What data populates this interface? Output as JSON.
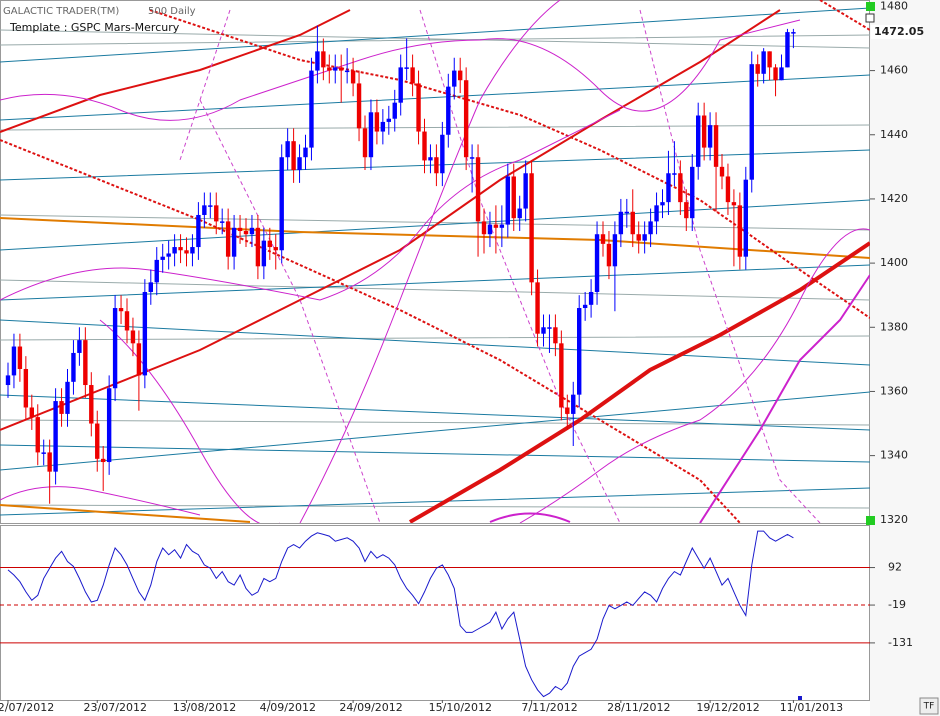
{
  "chart_data": [
    {
      "type": "candlestick",
      "title": "GALACTIC TRADER(TM)",
      "subtitle": "500 Daily",
      "template": "Template : GSPC Mars-Mercury",
      "categories": [
        "2/07/2012",
        null,
        null,
        null,
        null,
        null,
        null,
        null,
        null,
        null,
        null,
        null,
        null,
        null,
        null,
        "23/07/2012",
        null,
        null,
        null,
        null,
        null,
        null,
        null,
        null,
        null,
        null,
        null,
        null,
        null,
        null,
        "13/08/2012",
        null,
        null,
        null,
        null,
        null,
        null,
        null,
        null,
        null,
        null,
        null,
        null,
        null,
        "4/09/2012",
        null,
        null,
        null,
        null,
        null,
        null,
        null,
        null,
        null,
        null,
        null,
        null,
        null,
        "24/09/2012",
        null,
        null,
        null,
        null,
        null,
        null,
        null,
        null,
        null,
        null,
        null,
        null,
        null,
        null,
        "15/10/2012",
        null,
        null,
        null,
        null,
        null,
        null,
        null,
        null,
        null,
        null,
        null,
        null,
        null,
        null,
        "7/11/2012",
        null,
        null,
        null,
        null,
        null,
        null,
        null,
        null,
        null,
        null,
        null,
        null,
        null,
        null,
        "28/11/2012",
        null,
        null,
        null,
        null,
        null,
        null,
        null,
        null,
        null,
        null,
        null,
        null,
        null,
        null,
        "19/12/2012",
        null,
        null,
        null,
        null,
        null,
        null,
        null,
        null,
        null,
        null,
        null,
        null,
        null,
        "11/01/2013"
      ],
      "open": [
        1362,
        1365,
        1374,
        1367,
        1355,
        1352,
        1341,
        1341,
        1335,
        1357,
        1353,
        1363,
        1372,
        1376,
        1362,
        1350,
        1339,
        1338,
        1361,
        1386,
        1385,
        1379,
        1375,
        1365,
        1391,
        1394,
        1401,
        1402,
        1403,
        1405,
        1404,
        1403,
        1405,
        1415,
        1418,
        1418,
        1413,
        1413,
        1402,
        1411,
        1410,
        1409,
        1411,
        1399,
        1407,
        1405,
        1404,
        1433,
        1438,
        1429,
        1433,
        1436,
        1460,
        1466,
        1461,
        1460,
        1461,
        1460,
        1460,
        1456,
        1442,
        1433,
        1447,
        1441,
        1444,
        1445,
        1450,
        1461,
        1461,
        1456,
        1441,
        1432,
        1433,
        1428,
        1440,
        1455,
        1460,
        1457,
        1433,
        1433,
        1413,
        1409,
        1412,
        1411,
        1412,
        1427,
        1414,
        1417,
        1428,
        1394,
        1378,
        1380,
        1380,
        1375,
        1355,
        1353,
        1359,
        1386,
        1387,
        1391,
        1409,
        1406,
        1399,
        1409,
        1416,
        1416,
        1409,
        1407,
        1409,
        1413,
        1418,
        1419,
        1428,
        1428,
        1419,
        1414,
        1430,
        1446,
        1436,
        1443,
        1430,
        1427,
        1419,
        1418,
        1402,
        1426,
        1462,
        1459,
        1466,
        1461,
        1457,
        1461,
        1472
      ],
      "high": [
        1369,
        1378,
        1378,
        1371,
        1359,
        1356,
        1345,
        1345,
        1361,
        1361,
        1367,
        1376,
        1380,
        1380,
        1366,
        1354,
        1343,
        1365,
        1390,
        1390,
        1389,
        1383,
        1379,
        1395,
        1398,
        1405,
        1406,
        1407,
        1409,
        1409,
        1408,
        1409,
        1419,
        1422,
        1422,
        1422,
        1417,
        1417,
        1415,
        1415,
        1414,
        1415,
        1415,
        1411,
        1411,
        1409,
        1437,
        1442,
        1442,
        1437,
        1440,
        1464,
        1474,
        1470,
        1465,
        1465,
        1465,
        1467,
        1464,
        1460,
        1446,
        1451,
        1451,
        1448,
        1449,
        1454,
        1465,
        1470,
        1465,
        1460,
        1445,
        1437,
        1437,
        1444,
        1459,
        1464,
        1464,
        1461,
        1437,
        1437,
        1417,
        1416,
        1418,
        1418,
        1431,
        1431,
        1421,
        1432,
        1432,
        1398,
        1384,
        1384,
        1384,
        1379,
        1359,
        1363,
        1390,
        1391,
        1395,
        1413,
        1413,
        1410,
        1413,
        1420,
        1420,
        1423,
        1413,
        1413,
        1417,
        1422,
        1423,
        1435,
        1438,
        1432,
        1423,
        1434,
        1450,
        1450,
        1447,
        1447,
        1434,
        1431,
        1423,
        1422,
        1430,
        1466,
        1465,
        1467,
        1466,
        1462,
        1465,
        1473,
        1473
      ],
      "low": [
        1358,
        1361,
        1363,
        1351,
        1348,
        1337,
        1337,
        1325,
        1331,
        1349,
        1349,
        1359,
        1368,
        1358,
        1346,
        1335,
        1329,
        1334,
        1357,
        1381,
        1375,
        1371,
        1354,
        1361,
        1387,
        1390,
        1397,
        1398,
        1399,
        1400,
        1399,
        1399,
        1401,
        1411,
        1414,
        1409,
        1409,
        1398,
        1398,
        1406,
        1405,
        1405,
        1395,
        1395,
        1401,
        1398,
        1400,
        1429,
        1425,
        1425,
        1429,
        1432,
        1456,
        1457,
        1456,
        1456,
        1450,
        1456,
        1452,
        1438,
        1429,
        1429,
        1437,
        1437,
        1440,
        1441,
        1446,
        1457,
        1452,
        1437,
        1428,
        1428,
        1424,
        1424,
        1436,
        1451,
        1453,
        1429,
        1422,
        1402,
        1403,
        1405,
        1403,
        1405,
        1408,
        1410,
        1410,
        1413,
        1390,
        1374,
        1374,
        1372,
        1371,
        1351,
        1348,
        1343,
        1355,
        1382,
        1383,
        1387,
        1402,
        1395,
        1385,
        1405,
        1411,
        1405,
        1403,
        1403,
        1405,
        1409,
        1414,
        1415,
        1424,
        1415,
        1410,
        1410,
        1426,
        1432,
        1432,
        1416,
        1423,
        1415,
        1399,
        1398,
        1398,
        1422,
        1455,
        1456,
        1457,
        1452,
        1457,
        1461,
        1467
      ],
      "close": [
        1365,
        1374,
        1367,
        1355,
        1352,
        1341,
        1341,
        1335,
        1357,
        1353,
        1363,
        1372,
        1376,
        1362,
        1350,
        1339,
        1338,
        1361,
        1386,
        1385,
        1379,
        1375,
        1365,
        1391,
        1394,
        1401,
        1402,
        1403,
        1405,
        1404,
        1403,
        1405,
        1415,
        1418,
        1418,
        1413,
        1413,
        1402,
        1411,
        1410,
        1409,
        1411,
        1399,
        1407,
        1405,
        1404,
        1433,
        1438,
        1429,
        1433,
        1436,
        1460,
        1466,
        1461,
        1460,
        1461,
        1460,
        1460,
        1456,
        1442,
        1433,
        1447,
        1441,
        1444,
        1445,
        1450,
        1461,
        1461,
        1456,
        1441,
        1432,
        1433,
        1428,
        1440,
        1455,
        1460,
        1457,
        1433,
        1433,
        1413,
        1409,
        1412,
        1411,
        1412,
        1427,
        1414,
        1417,
        1428,
        1394,
        1378,
        1380,
        1380,
        1375,
        1355,
        1353,
        1359,
        1386,
        1387,
        1391,
        1409,
        1406,
        1399,
        1409,
        1416,
        1416,
        1409,
        1407,
        1409,
        1413,
        1418,
        1419,
        1428,
        1428,
        1419,
        1414,
        1430,
        1446,
        1436,
        1443,
        1430,
        1427,
        1419,
        1418,
        1402,
        1426,
        1462,
        1459,
        1466,
        1461,
        1457,
        1461,
        1472,
        1472
      ],
      "up_color": "#0000ff",
      "down_color": "#ee0000",
      "ylim": [
        1319,
        1482
      ],
      "yticks": [
        1320,
        1340,
        1360,
        1380,
        1400,
        1420,
        1440,
        1460,
        1480
      ],
      "last_price": 1472.05
    },
    {
      "type": "line",
      "values": [
        85,
        70,
        50,
        20,
        -5,
        10,
        60,
        90,
        120,
        140,
        110,
        95,
        60,
        20,
        -10,
        -5,
        40,
        100,
        150,
        130,
        100,
        60,
        20,
        -5,
        40,
        110,
        150,
        130,
        145,
        120,
        160,
        140,
        130,
        100,
        90,
        60,
        80,
        50,
        40,
        70,
        30,
        10,
        20,
        60,
        50,
        60,
        110,
        150,
        160,
        150,
        170,
        185,
        195,
        190,
        185,
        170,
        175,
        180,
        170,
        150,
        110,
        140,
        120,
        130,
        120,
        100,
        60,
        30,
        10,
        -15,
        20,
        60,
        90,
        100,
        70,
        30,
        -80,
        -100,
        -100,
        -90,
        -80,
        -70,
        -40,
        -90,
        -60,
        -40,
        -120,
        -200,
        -240,
        -270,
        -290,
        -280,
        -260,
        -270,
        -250,
        -200,
        -170,
        -160,
        -150,
        -120,
        -60,
        -20,
        -30,
        -20,
        -10,
        -20,
        0,
        20,
        10,
        -10,
        30,
        60,
        80,
        70,
        110,
        150,
        120,
        90,
        120,
        80,
        40,
        60,
        20,
        -20,
        -50,
        100,
        200,
        200,
        180,
        170,
        180,
        190,
        180
      ],
      "color": "#1a1acc",
      "ylim": [
        -300,
        215
      ],
      "yticks": [
        92,
        -19,
        -131
      ],
      "reference_color": "#cc0000",
      "reference_styles": [
        "solid",
        "dashed",
        "solid"
      ]
    }
  ],
  "toolbar": {
    "button": "TF"
  }
}
